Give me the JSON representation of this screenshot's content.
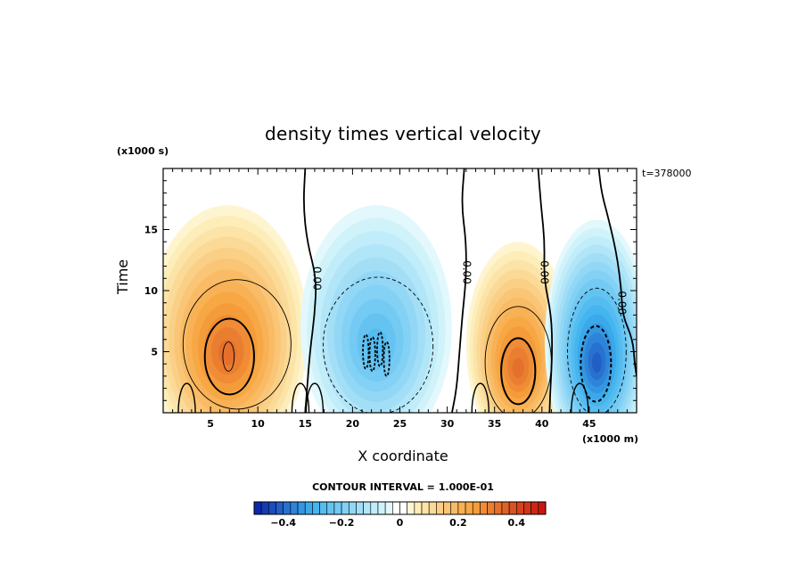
{
  "chart_data": {
    "type": "heatmap",
    "title": "density times vertical velocity",
    "xlabel": "X coordinate",
    "ylabel": "Time",
    "x_unit": "(x1000 m)",
    "y_unit": "(x1000 s)",
    "annotation": "t=378000",
    "xlim": [
      0,
      50
    ],
    "ylim": [
      0,
      20
    ],
    "x_ticks": [
      5,
      10,
      15,
      20,
      25,
      30,
      35,
      40,
      45
    ],
    "y_ticks": [
      5,
      10,
      15
    ],
    "contour_interval_text": "CONTOUR INTERVAL = 1.000E-01",
    "contour_label": "0.00",
    "contour_labels": [
      {
        "text": "0.00",
        "x": 16.2,
        "y": 11.0
      },
      {
        "text": "0.00",
        "x": 32.0,
        "y": 11.5
      },
      {
        "text": "0.00",
        "x": 40.2,
        "y": 11.5
      },
      {
        "text": "0.00",
        "x": 48.4,
        "y": 9.0
      }
    ],
    "colorbar": {
      "min": -0.5,
      "max": 0.5,
      "step": 0.025,
      "tick_values": [
        -0.4,
        -0.2,
        0,
        0.2,
        0.4
      ],
      "tick_labels": [
        "-0.4",
        "-0.2",
        "0",
        "0.2",
        "0.4"
      ]
    },
    "features": [
      {
        "name": "positive-cell-1",
        "x": 6.8,
        "y": 4.8,
        "peak": 0.35
      },
      {
        "name": "negative-cell-1",
        "x": 22.5,
        "y": 5.5,
        "peak": -0.25
      },
      {
        "name": "positive-cell-2",
        "x": 37.5,
        "y": 3.5,
        "peak": 0.35
      },
      {
        "name": "negative-cell-2",
        "x": 45.8,
        "y": 4.0,
        "peak": -0.4
      }
    ],
    "colors": {
      "neg_strong": "#0b1fa8",
      "neg_mid": "#3db2ee",
      "neg_weak": "#d8f6fb",
      "zero": "#ffffff",
      "pos_weak": "#fdf2c0",
      "pos_mid": "#f7a23c",
      "pos_strong": "#c4110e"
    }
  }
}
